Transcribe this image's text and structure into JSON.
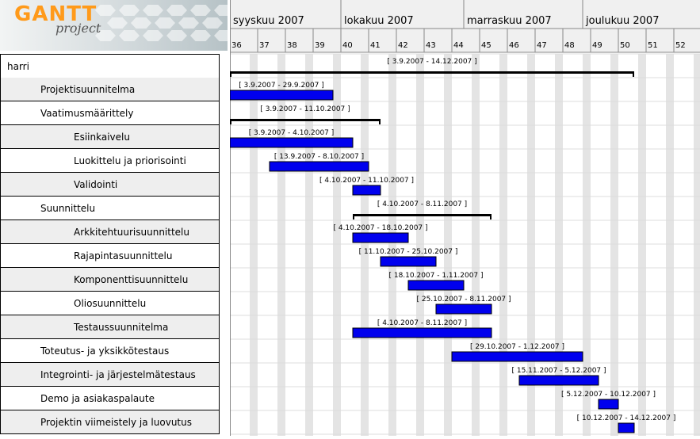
{
  "logo": {
    "gantt": "GANTT",
    "project": "project"
  },
  "header": {
    "months": [
      "syyskuu 2007",
      "lokakuu 2007",
      "marraskuu 2007",
      "joulukuu 2007"
    ],
    "weeks": [
      "36",
      "37",
      "38",
      "39",
      "40",
      "41",
      "42",
      "43",
      "44",
      "45",
      "46",
      "47",
      "48",
      "49",
      "50",
      "51",
      "52"
    ]
  },
  "colors": {
    "bar": "#0000ee",
    "summary": "#000000",
    "alt_row": "#eeeeee",
    "weekend": "#e4e4e4"
  },
  "tasks": [
    {
      "name": "harri",
      "level": 0,
      "type": "summary",
      "start": "2007-09-03",
      "end": "2007-12-14",
      "label": "[ 3.9.2007 - 14.12.2007 ]"
    },
    {
      "name": "Projektisuunnitelma",
      "level": 1,
      "type": "task",
      "start": "2007-09-03",
      "end": "2007-09-29",
      "label": "[ 3.9.2007 - 29.9.2007 ]"
    },
    {
      "name": "Vaatimusmäärittely",
      "level": 1,
      "type": "summary",
      "start": "2007-09-03",
      "end": "2007-10-11",
      "label": "[ 3.9.2007 - 11.10.2007 ]"
    },
    {
      "name": "Esiinkaivelu",
      "level": 2,
      "type": "task",
      "start": "2007-09-03",
      "end": "2007-10-04",
      "label": "[ 3.9.2007 - 4.10.2007 ]"
    },
    {
      "name": "Luokittelu ja priorisointi",
      "level": 2,
      "type": "task",
      "start": "2007-09-13",
      "end": "2007-10-08",
      "label": "[ 13.9.2007 - 8.10.2007 ]"
    },
    {
      "name": "Validointi",
      "level": 2,
      "type": "task",
      "start": "2007-10-04",
      "end": "2007-10-11",
      "label": "[ 4.10.2007 - 11.10.2007 ]"
    },
    {
      "name": "Suunnittelu",
      "level": 1,
      "type": "summary",
      "start": "2007-10-04",
      "end": "2007-11-08",
      "label": "[ 4.10.2007 - 8.11.2007 ]"
    },
    {
      "name": "Arkkitehtuurisuunnittelu",
      "level": 2,
      "type": "task",
      "start": "2007-10-04",
      "end": "2007-10-18",
      "label": "[ 4.10.2007 - 18.10.2007 ]"
    },
    {
      "name": "Rajapintasuunnittelu",
      "level": 2,
      "type": "task",
      "start": "2007-10-11",
      "end": "2007-10-25",
      "label": "[ 11.10.2007 - 25.10.2007 ]"
    },
    {
      "name": "Komponenttisuunnittelu",
      "level": 2,
      "type": "task",
      "start": "2007-10-18",
      "end": "2007-11-01",
      "label": "[ 18.10.2007 - 1.11.2007 ]"
    },
    {
      "name": "Oliosuunnittelu",
      "level": 2,
      "type": "task",
      "start": "2007-10-25",
      "end": "2007-11-08",
      "label": "[ 25.10.2007 - 8.11.2007 ]"
    },
    {
      "name": "Testaussuunnitelma",
      "level": 2,
      "type": "task",
      "start": "2007-10-04",
      "end": "2007-11-08",
      "label": "[ 4.10.2007 - 8.11.2007 ]"
    },
    {
      "name": "Toteutus- ja yksikkötestaus",
      "level": 1,
      "type": "task",
      "start": "2007-10-29",
      "end": "2007-12-01",
      "label": "[ 29.10.2007 - 1.12.2007 ]"
    },
    {
      "name": "Integrointi- ja järjestelmätestaus",
      "level": 1,
      "type": "task",
      "start": "2007-11-15",
      "end": "2007-12-05",
      "label": "[ 15.11.2007 - 5.12.2007 ]"
    },
    {
      "name": "Demo ja asiakaspalaute",
      "level": 1,
      "type": "task",
      "start": "2007-12-05",
      "end": "2007-12-10",
      "label": "[ 5.12.2007 - 10.12.2007 ]"
    },
    {
      "name": "Projektin viimeistely ja luovutus",
      "level": 1,
      "type": "task",
      "start": "2007-12-10",
      "end": "2007-12-14",
      "label": "[ 10.12.2007 - 14.12.2007 ]"
    }
  ]
}
